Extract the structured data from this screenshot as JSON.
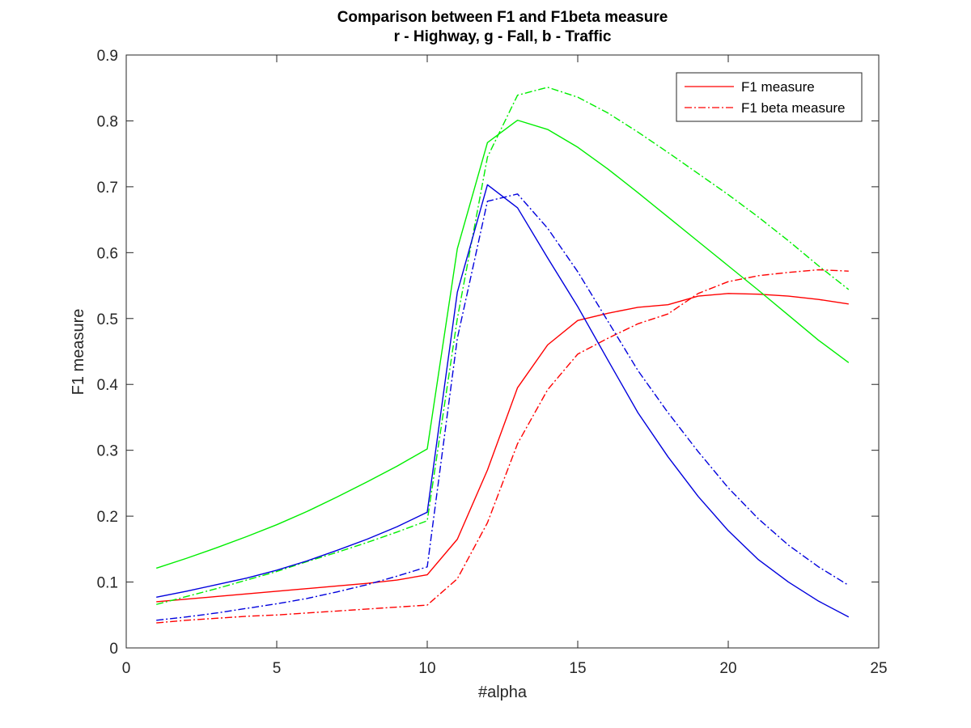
{
  "chart_data": {
    "type": "line",
    "title": [
      "Comparison between F1 and F1beta measure",
      "r - Highway, g - Fall, b - Traffic"
    ],
    "xlabel": "#alpha",
    "ylabel": "F1 measure",
    "xlim": [
      0,
      25
    ],
    "ylim": [
      0,
      0.9
    ],
    "xticks": [
      0,
      5,
      10,
      15,
      20,
      25
    ],
    "xtick_labels": [
      "0",
      "5",
      "10",
      "15",
      "20",
      "25"
    ],
    "yticks": [
      0,
      0.1,
      0.2,
      0.3,
      0.4,
      0.5,
      0.6,
      0.7,
      0.8,
      0.9
    ],
    "ytick_labels": [
      "0",
      "0.1",
      "0.2",
      "0.3",
      "0.4",
      "0.5",
      "0.6",
      "0.7",
      "0.8",
      "0.9"
    ],
    "grid": false,
    "legend": {
      "position": "top-right",
      "entries": [
        {
          "label": "F1 measure",
          "color": "#ff0000",
          "style": "solid"
        },
        {
          "label": "F1 beta measure",
          "color": "#ff0000",
          "style": "dashdot"
        }
      ]
    },
    "x": [
      1,
      2,
      3,
      4,
      5,
      6,
      7,
      8,
      9,
      10,
      11,
      12,
      13,
      14,
      15,
      16,
      17,
      18,
      19,
      20,
      21,
      22,
      23,
      24
    ],
    "series": [
      {
        "name": "Highway F1",
        "color": "#ff0000",
        "style": "solid",
        "values": [
          0.07,
          0.074,
          0.078,
          0.082,
          0.086,
          0.09,
          0.094,
          0.098,
          0.103,
          0.111,
          0.165,
          0.27,
          0.395,
          0.46,
          0.497,
          0.508,
          0.517,
          0.521,
          0.534,
          0.538,
          0.537,
          0.534,
          0.529,
          0.522
        ]
      },
      {
        "name": "Highway F1beta",
        "color": "#ff0000",
        "style": "dashdot",
        "values": [
          0.038,
          0.042,
          0.045,
          0.048,
          0.05,
          0.053,
          0.056,
          0.059,
          0.062,
          0.065,
          0.105,
          0.19,
          0.31,
          0.392,
          0.446,
          0.47,
          0.492,
          0.507,
          0.538,
          0.556,
          0.565,
          0.57,
          0.574,
          0.572
        ]
      },
      {
        "name": "Fall F1",
        "color": "#00ee00",
        "style": "solid",
        "values": [
          0.121,
          0.136,
          0.152,
          0.169,
          0.187,
          0.207,
          0.229,
          0.252,
          0.276,
          0.302,
          0.606,
          0.767,
          0.801,
          0.787,
          0.76,
          0.727,
          0.691,
          0.654,
          0.617,
          0.58,
          0.543,
          0.505,
          0.467,
          0.433
        ]
      },
      {
        "name": "Fall F1beta",
        "color": "#00ee00",
        "style": "dashdot",
        "values": [
          0.066,
          0.078,
          0.09,
          0.103,
          0.116,
          0.131,
          0.145,
          0.16,
          0.176,
          0.193,
          0.5,
          0.745,
          0.839,
          0.851,
          0.836,
          0.812,
          0.783,
          0.752,
          0.72,
          0.688,
          0.654,
          0.618,
          0.58,
          0.544
        ]
      },
      {
        "name": "Traffic F1",
        "color": "#0000dd",
        "style": "solid",
        "values": [
          0.077,
          0.086,
          0.096,
          0.106,
          0.118,
          0.132,
          0.148,
          0.165,
          0.184,
          0.206,
          0.54,
          0.703,
          0.668,
          0.592,
          0.518,
          0.437,
          0.357,
          0.29,
          0.23,
          0.178,
          0.134,
          0.1,
          0.071,
          0.047
        ]
      },
      {
        "name": "Traffic F1beta",
        "color": "#0000dd",
        "style": "dashdot",
        "values": [
          0.042,
          0.047,
          0.053,
          0.06,
          0.067,
          0.075,
          0.085,
          0.096,
          0.109,
          0.123,
          0.47,
          0.678,
          0.689,
          0.637,
          0.571,
          0.496,
          0.421,
          0.357,
          0.298,
          0.243,
          0.196,
          0.156,
          0.123,
          0.095
        ]
      }
    ]
  }
}
